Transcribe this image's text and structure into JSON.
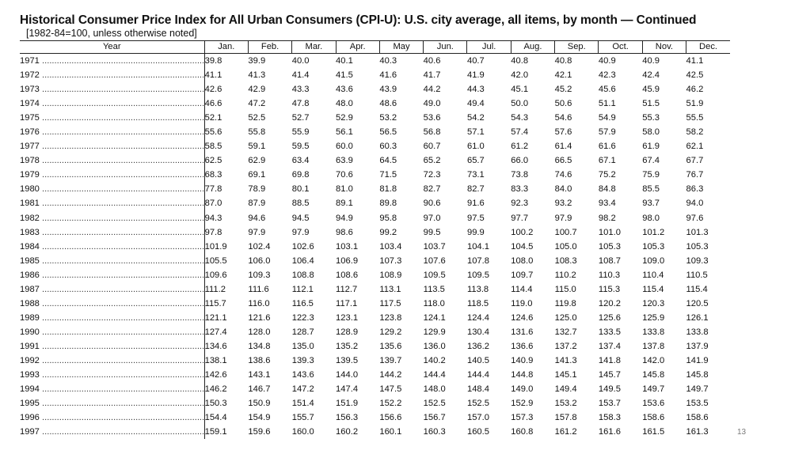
{
  "title": "Historical Consumer Price Index for All Urban Consumers (CPI-U): U.S. city average, all items, by month — Continued",
  "subtitle": "[1982-84=100, unless otherwise noted]",
  "page_number": "13",
  "table": {
    "headers": [
      "Year",
      "Jan.",
      "Feb.",
      "Mar.",
      "Apr.",
      "May",
      "Jun.",
      "Jul.",
      "Aug.",
      "Sep.",
      "Oct.",
      "Nov.",
      "Dec."
    ],
    "rows": [
      {
        "year": "1971",
        "values": [
          "39.8",
          "39.9",
          "40.0",
          "40.1",
          "40.3",
          "40.6",
          "40.7",
          "40.8",
          "40.8",
          "40.9",
          "40.9",
          "41.1"
        ]
      },
      {
        "year": "1972",
        "values": [
          "41.1",
          "41.3",
          "41.4",
          "41.5",
          "41.6",
          "41.7",
          "41.9",
          "42.0",
          "42.1",
          "42.3",
          "42.4",
          "42.5"
        ]
      },
      {
        "year": "1973",
        "values": [
          "42.6",
          "42.9",
          "43.3",
          "43.6",
          "43.9",
          "44.2",
          "44.3",
          "45.1",
          "45.2",
          "45.6",
          "45.9",
          "46.2"
        ]
      },
      {
        "year": "1974",
        "values": [
          "46.6",
          "47.2",
          "47.8",
          "48.0",
          "48.6",
          "49.0",
          "49.4",
          "50.0",
          "50.6",
          "51.1",
          "51.5",
          "51.9"
        ]
      },
      {
        "year": "1975",
        "values": [
          "52.1",
          "52.5",
          "52.7",
          "52.9",
          "53.2",
          "53.6",
          "54.2",
          "54.3",
          "54.6",
          "54.9",
          "55.3",
          "55.5"
        ]
      },
      {
        "year": "1976",
        "values": [
          "55.6",
          "55.8",
          "55.9",
          "56.1",
          "56.5",
          "56.8",
          "57.1",
          "57.4",
          "57.6",
          "57.9",
          "58.0",
          "58.2"
        ]
      },
      {
        "year": "1977",
        "values": [
          "58.5",
          "59.1",
          "59.5",
          "60.0",
          "60.3",
          "60.7",
          "61.0",
          "61.2",
          "61.4",
          "61.6",
          "61.9",
          "62.1"
        ]
      },
      {
        "year": "1978",
        "values": [
          "62.5",
          "62.9",
          "63.4",
          "63.9",
          "64.5",
          "65.2",
          "65.7",
          "66.0",
          "66.5",
          "67.1",
          "67.4",
          "67.7"
        ]
      },
      {
        "year": "1979",
        "values": [
          "68.3",
          "69.1",
          "69.8",
          "70.6",
          "71.5",
          "72.3",
          "73.1",
          "73.8",
          "74.6",
          "75.2",
          "75.9",
          "76.7"
        ]
      },
      {
        "year": "1980",
        "values": [
          "77.8",
          "78.9",
          "80.1",
          "81.0",
          "81.8",
          "82.7",
          "82.7",
          "83.3",
          "84.0",
          "84.8",
          "85.5",
          "86.3"
        ]
      },
      {
        "year": "1981",
        "values": [
          "87.0",
          "87.9",
          "88.5",
          "89.1",
          "89.8",
          "90.6",
          "91.6",
          "92.3",
          "93.2",
          "93.4",
          "93.7",
          "94.0"
        ]
      },
      {
        "year": "1982",
        "values": [
          "94.3",
          "94.6",
          "94.5",
          "94.9",
          "95.8",
          "97.0",
          "97.5",
          "97.7",
          "97.9",
          "98.2",
          "98.0",
          "97.6"
        ]
      },
      {
        "year": "1983",
        "values": [
          "97.8",
          "97.9",
          "97.9",
          "98.6",
          "99.2",
          "99.5",
          "99.9",
          "100.2",
          "100.7",
          "101.0",
          "101.2",
          "101.3"
        ]
      },
      {
        "year": "1984",
        "values": [
          "101.9",
          "102.4",
          "102.6",
          "103.1",
          "103.4",
          "103.7",
          "104.1",
          "104.5",
          "105.0",
          "105.3",
          "105.3",
          "105.3"
        ]
      },
      {
        "year": "1985",
        "values": [
          "105.5",
          "106.0",
          "106.4",
          "106.9",
          "107.3",
          "107.6",
          "107.8",
          "108.0",
          "108.3",
          "108.7",
          "109.0",
          "109.3"
        ]
      },
      {
        "year": "1986",
        "values": [
          "109.6",
          "109.3",
          "108.8",
          "108.6",
          "108.9",
          "109.5",
          "109.5",
          "109.7",
          "110.2",
          "110.3",
          "110.4",
          "110.5"
        ]
      },
      {
        "year": "1987",
        "values": [
          "111.2",
          "111.6",
          "112.1",
          "112.7",
          "113.1",
          "113.5",
          "113.8",
          "114.4",
          "115.0",
          "115.3",
          "115.4",
          "115.4"
        ]
      },
      {
        "year": "1988",
        "values": [
          "115.7",
          "116.0",
          "116.5",
          "117.1",
          "117.5",
          "118.0",
          "118.5",
          "119.0",
          "119.8",
          "120.2",
          "120.3",
          "120.5"
        ]
      },
      {
        "year": "1989",
        "values": [
          "121.1",
          "121.6",
          "122.3",
          "123.1",
          "123.8",
          "124.1",
          "124.4",
          "124.6",
          "125.0",
          "125.6",
          "125.9",
          "126.1"
        ]
      },
      {
        "year": "1990",
        "values": [
          "127.4",
          "128.0",
          "128.7",
          "128.9",
          "129.2",
          "129.9",
          "130.4",
          "131.6",
          "132.7",
          "133.5",
          "133.8",
          "133.8"
        ]
      },
      {
        "year": "1991",
        "values": [
          "134.6",
          "134.8",
          "135.0",
          "135.2",
          "135.6",
          "136.0",
          "136.2",
          "136.6",
          "137.2",
          "137.4",
          "137.8",
          "137.9"
        ]
      },
      {
        "year": "1992",
        "values": [
          "138.1",
          "138.6",
          "139.3",
          "139.5",
          "139.7",
          "140.2",
          "140.5",
          "140.9",
          "141.3",
          "141.8",
          "142.0",
          "141.9"
        ]
      },
      {
        "year": "1993",
        "values": [
          "142.6",
          "143.1",
          "143.6",
          "144.0",
          "144.2",
          "144.4",
          "144.4",
          "144.8",
          "145.1",
          "145.7",
          "145.8",
          "145.8"
        ]
      },
      {
        "year": "1994",
        "values": [
          "146.2",
          "146.7",
          "147.2",
          "147.4",
          "147.5",
          "148.0",
          "148.4",
          "149.0",
          "149.4",
          "149.5",
          "149.7",
          "149.7"
        ]
      },
      {
        "year": "1995",
        "values": [
          "150.3",
          "150.9",
          "151.4",
          "151.9",
          "152.2",
          "152.5",
          "152.5",
          "152.9",
          "153.2",
          "153.7",
          "153.6",
          "153.5"
        ]
      },
      {
        "year": "1996",
        "values": [
          "154.4",
          "154.9",
          "155.7",
          "156.3",
          "156.6",
          "156.7",
          "157.0",
          "157.3",
          "157.8",
          "158.3",
          "158.6",
          "158.6"
        ]
      },
      {
        "year": "1997",
        "values": [
          "159.1",
          "159.6",
          "160.0",
          "160.2",
          "160.1",
          "160.3",
          "160.5",
          "160.8",
          "161.2",
          "161.6",
          "161.5",
          "161.3"
        ]
      }
    ]
  }
}
